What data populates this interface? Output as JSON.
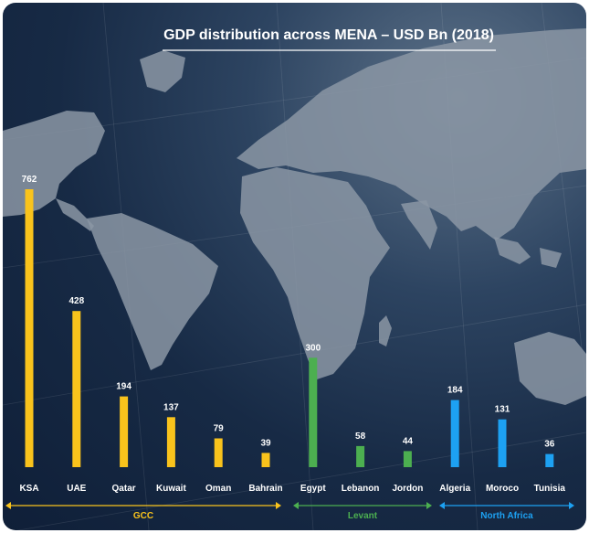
{
  "chart_data": {
    "type": "bar",
    "title": "GDP distribution across MENA – USD Bn (2018)",
    "categories": [
      "KSA",
      "UAE",
      "Qatar",
      "Kuwait",
      "Oman",
      "Bahrain",
      "Egypt",
      "Lebanon",
      "Jordon",
      "Algeria",
      "Moroco",
      "Tunisia"
    ],
    "values": [
      762,
      428,
      194,
      137,
      79,
      39,
      300,
      58,
      44,
      184,
      131,
      36
    ],
    "ylim": [
      0,
      762
    ],
    "grid": false,
    "groups": [
      {
        "name": "GCC",
        "categories": [
          "KSA",
          "UAE",
          "Qatar",
          "Kuwait",
          "Oman",
          "Bahrain"
        ],
        "color": "#f9c31c"
      },
      {
        "name": "Levant",
        "categories": [
          "Egypt",
          "Lebanon",
          "Jordon"
        ],
        "color": "#4caf50"
      },
      {
        "name": "North Africa",
        "categories": [
          "Algeria",
          "Moroco",
          "Tunisia"
        ],
        "color": "#1da1f2"
      }
    ]
  },
  "colors": {
    "background": "#172a45",
    "land": "#8b97a5",
    "gcc": "#f9c31c",
    "levant": "#4caf50",
    "north_africa": "#1da1f2",
    "text": "#ffffff"
  }
}
